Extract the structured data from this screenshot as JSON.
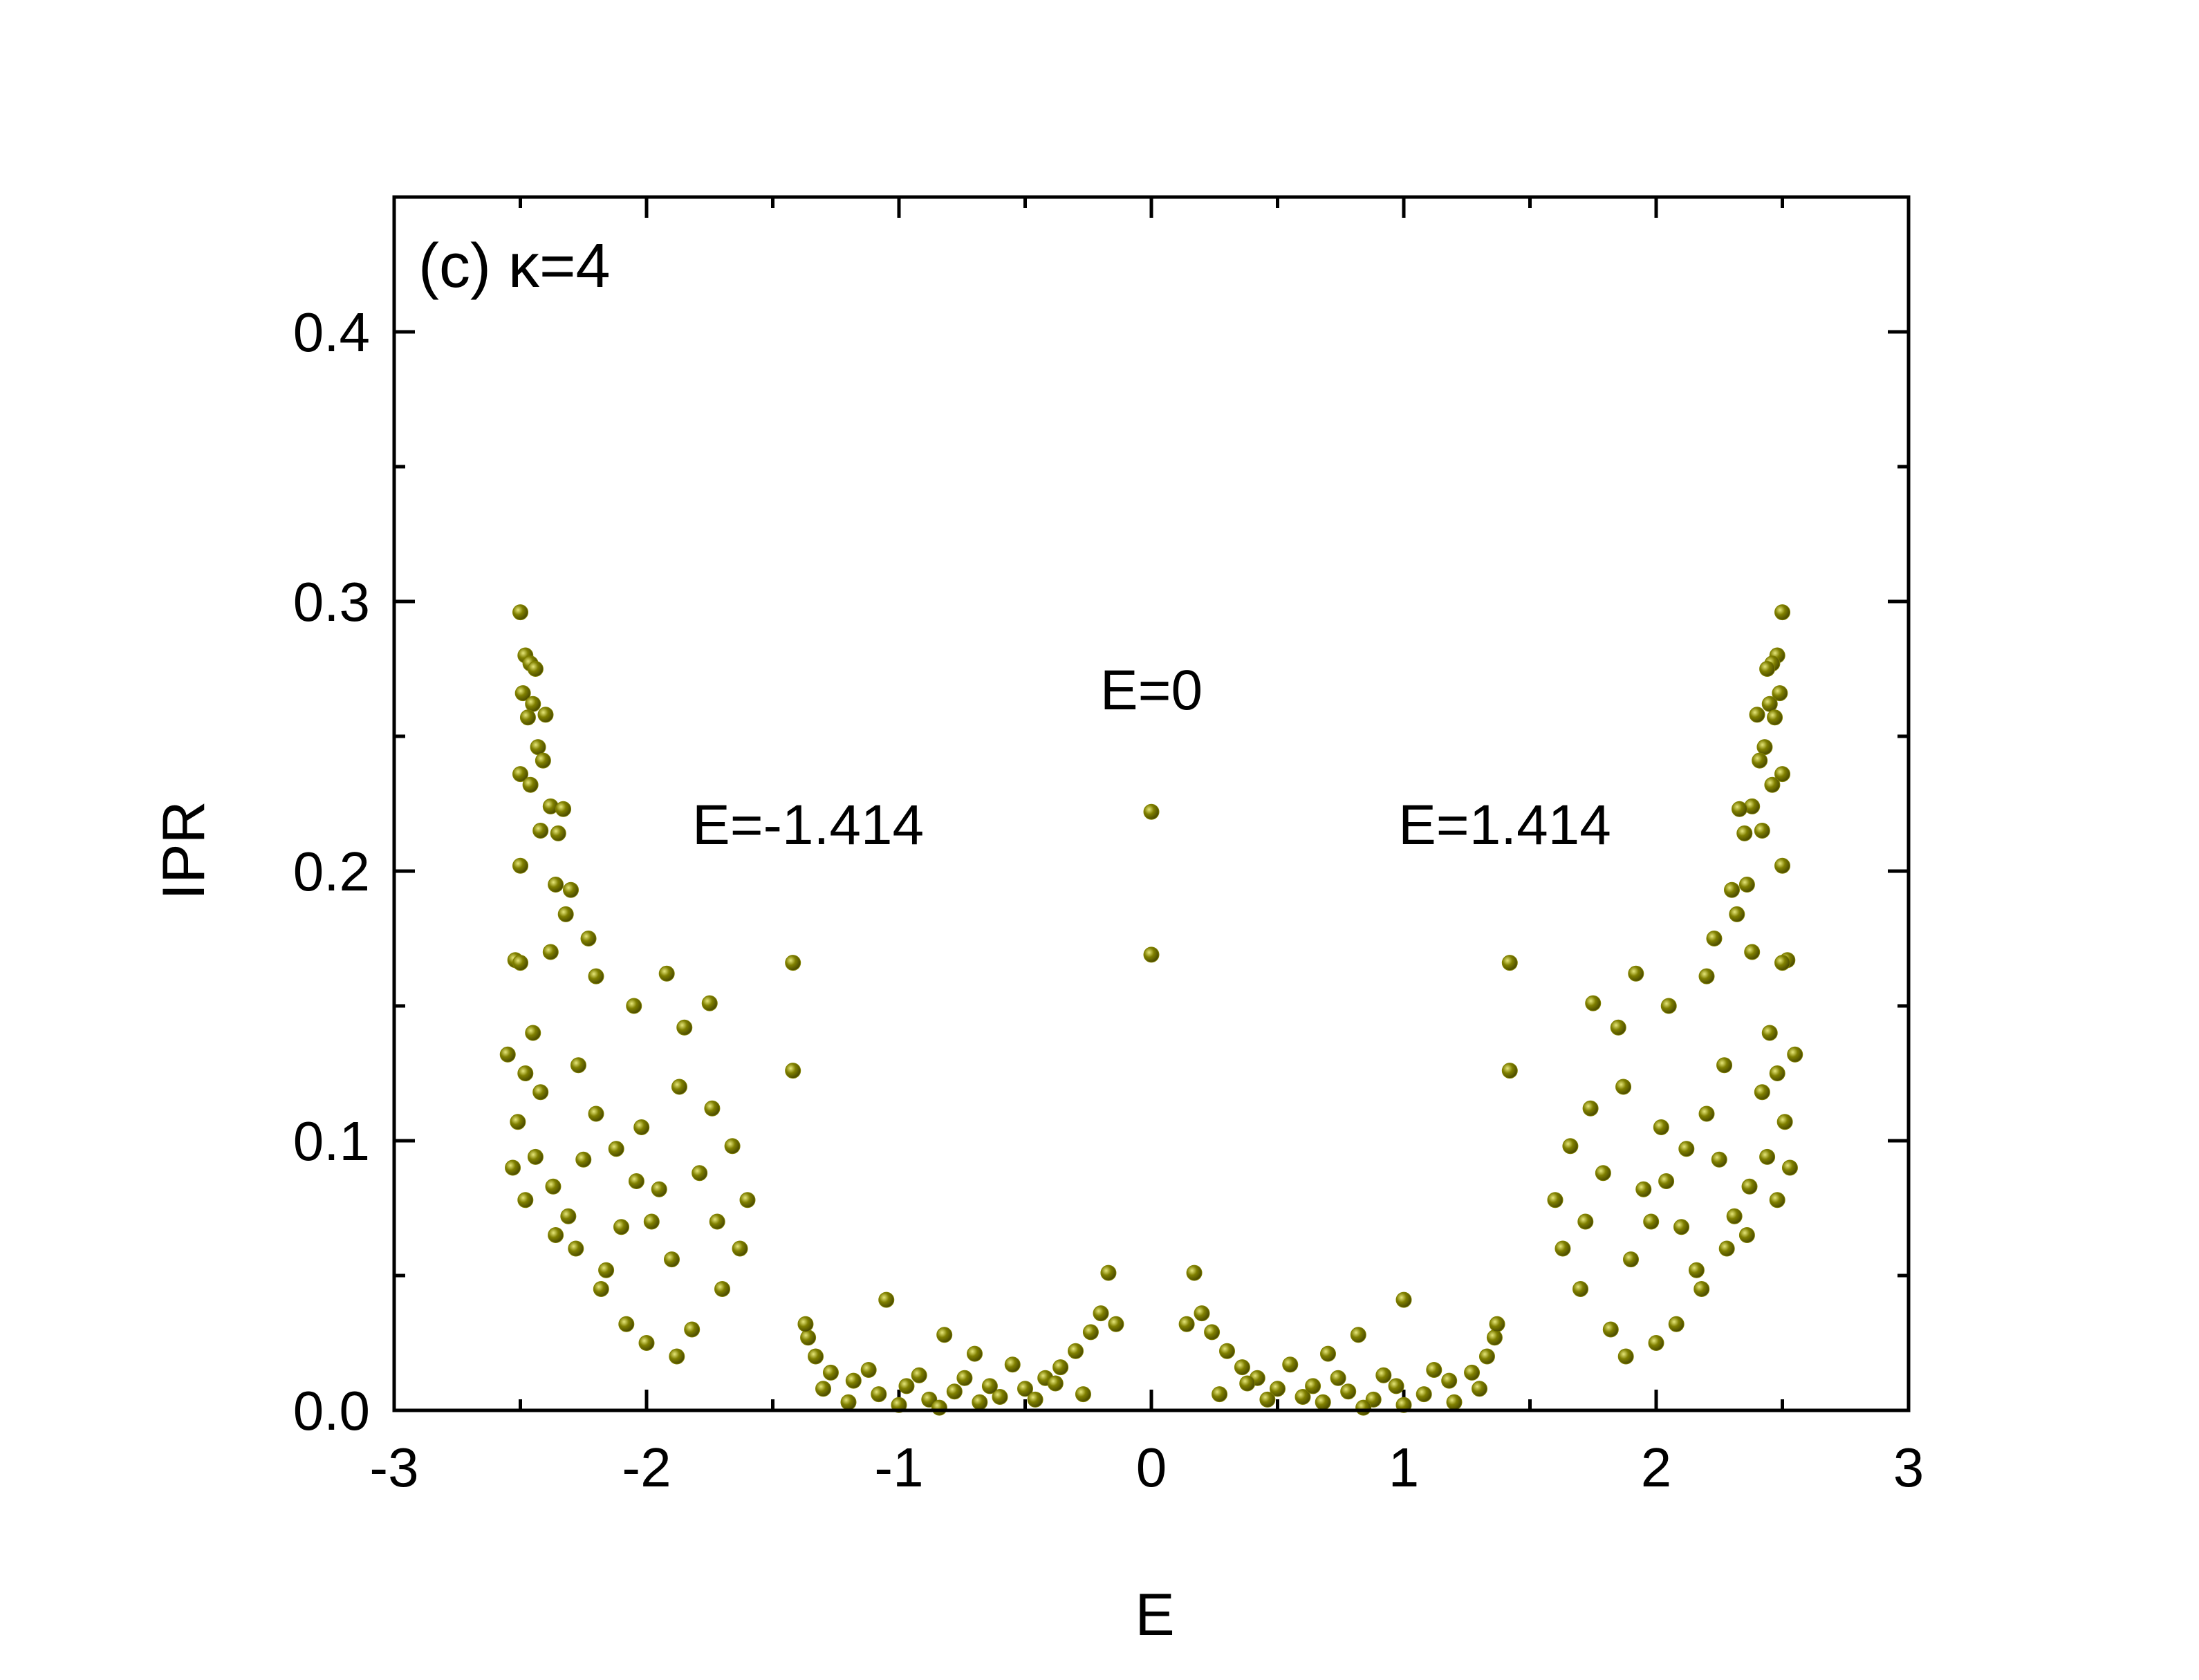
{
  "chart_data": {
    "type": "scatter",
    "title": "",
    "panel_label": "(c) κ=4",
    "xlabel": "E",
    "ylabel": "IPR",
    "xlim": [
      -3,
      3
    ],
    "ylim": [
      0,
      0.45
    ],
    "xticks": [
      "-3",
      "-2",
      "-1",
      "0",
      "1",
      "2",
      "3"
    ],
    "yticks": [
      "0.0",
      "0.1",
      "0.2",
      "0.3",
      "0.4"
    ],
    "grid": false,
    "marker_color": "#808000",
    "annotations": [
      {
        "text": "E=0",
        "x": 0,
        "y": 0.26
      },
      {
        "text": "E=-1.414",
        "x": -1.36,
        "y": 0.21
      },
      {
        "text": "E=1.414",
        "x": 1.4,
        "y": 0.21
      }
    ],
    "series": [
      {
        "points": [
          [
            -2.5,
            0.296
          ],
          [
            -2.48,
            0.28
          ],
          [
            -2.46,
            0.277
          ],
          [
            -2.44,
            0.275
          ],
          [
            -2.49,
            0.266
          ],
          [
            -2.45,
            0.262
          ],
          [
            -2.47,
            0.257
          ],
          [
            -2.4,
            0.258
          ],
          [
            -2.43,
            0.246
          ],
          [
            -2.41,
            0.241
          ],
          [
            -2.5,
            0.236
          ],
          [
            -2.46,
            0.232
          ],
          [
            -2.38,
            0.224
          ],
          [
            -2.33,
            0.223
          ],
          [
            -2.35,
            0.214
          ],
          [
            -2.42,
            0.215
          ],
          [
            -2.5,
            0.202
          ],
          [
            -2.36,
            0.195
          ],
          [
            -2.3,
            0.193
          ],
          [
            -2.32,
            0.184
          ],
          [
            -2.38,
            0.17
          ],
          [
            -2.23,
            0.175
          ],
          [
            -2.52,
            0.167
          ],
          [
            -2.5,
            0.166
          ],
          [
            -2.2,
            0.161
          ],
          [
            -1.92,
            0.162
          ],
          [
            -1.75,
            0.151
          ],
          [
            -2.55,
            0.132
          ],
          [
            -2.48,
            0.125
          ],
          [
            -2.45,
            0.14
          ],
          [
            -2.42,
            0.118
          ],
          [
            -2.51,
            0.107
          ],
          [
            -2.53,
            0.09
          ],
          [
            -2.44,
            0.094
          ],
          [
            -2.37,
            0.083
          ],
          [
            -2.31,
            0.072
          ],
          [
            -2.48,
            0.078
          ],
          [
            -2.36,
            0.065
          ],
          [
            -2.16,
            0.052
          ],
          [
            -2.08,
            0.032
          ],
          [
            -2.0,
            0.025
          ],
          [
            -1.88,
            0.02
          ],
          [
            -1.82,
            0.03
          ],
          [
            -1.7,
            0.045
          ],
          [
            -1.63,
            0.06
          ],
          [
            -1.6,
            0.078
          ],
          [
            -1.66,
            0.098
          ],
          [
            -1.74,
            0.112
          ],
          [
            -1.85,
            0.142
          ],
          [
            -2.05,
            0.15
          ],
          [
            -2.27,
            0.128
          ],
          [
            -2.2,
            0.11
          ],
          [
            -2.12,
            0.097
          ],
          [
            -2.04,
            0.085
          ],
          [
            -1.98,
            0.07
          ],
          [
            -1.9,
            0.056
          ],
          [
            -1.95,
            0.082
          ],
          [
            -2.1,
            0.068
          ],
          [
            -2.25,
            0.093
          ],
          [
            -1.79,
            0.088
          ],
          [
            -1.72,
            0.07
          ],
          [
            -2.18,
            0.045
          ],
          [
            -2.28,
            0.06
          ],
          [
            -2.02,
            0.105
          ],
          [
            -1.87,
            0.12
          ],
          [
            -1.42,
            0.166
          ],
          [
            -1.42,
            0.126
          ],
          [
            -1.05,
            0.041
          ],
          [
            -0.82,
            0.028
          ],
          [
            -0.7,
            0.021
          ],
          [
            -0.17,
            0.051
          ],
          [
            -0.2,
            0.036
          ],
          [
            -0.14,
            0.032
          ],
          [
            -0.24,
            0.029
          ],
          [
            -0.3,
            0.022
          ],
          [
            -0.36,
            0.016
          ],
          [
            -0.42,
            0.012
          ],
          [
            -0.5,
            0.008
          ],
          [
            -0.6,
            0.005
          ],
          [
            -0.68,
            0.003
          ],
          [
            -0.78,
            0.007
          ],
          [
            -0.88,
            0.004
          ],
          [
            -0.97,
            0.009
          ],
          [
            -1.08,
            0.006
          ],
          [
            -1.18,
            0.011
          ],
          [
            -1.27,
            0.014
          ],
          [
            -1.33,
            0.02
          ],
          [
            -1.36,
            0.027
          ],
          [
            -1.37,
            0.032
          ],
          [
            -1.3,
            0.008
          ],
          [
            -1.2,
            0.003
          ],
          [
            -1.12,
            0.015
          ],
          [
            -1.0,
            0.002
          ],
          [
            -0.92,
            0.013
          ],
          [
            -0.84,
            0.001
          ],
          [
            -0.74,
            0.012
          ],
          [
            -0.64,
            0.009
          ],
          [
            -0.55,
            0.017
          ],
          [
            -0.46,
            0.004
          ],
          [
            -0.38,
            0.01
          ],
          [
            -0.27,
            0.006
          ],
          [
            0.0,
            0.222
          ],
          [
            0.0,
            0.169
          ],
          [
            0.17,
            0.051
          ],
          [
            0.2,
            0.036
          ],
          [
            0.14,
            0.032
          ],
          [
            0.24,
            0.029
          ],
          [
            0.3,
            0.022
          ],
          [
            0.36,
            0.016
          ],
          [
            0.42,
            0.012
          ],
          [
            0.5,
            0.008
          ],
          [
            0.6,
            0.005
          ],
          [
            0.68,
            0.003
          ],
          [
            0.78,
            0.007
          ],
          [
            0.88,
            0.004
          ],
          [
            0.97,
            0.009
          ],
          [
            1.08,
            0.006
          ],
          [
            1.18,
            0.011
          ],
          [
            1.27,
            0.014
          ],
          [
            1.33,
            0.02
          ],
          [
            1.36,
            0.027
          ],
          [
            1.37,
            0.032
          ],
          [
            1.3,
            0.008
          ],
          [
            1.2,
            0.003
          ],
          [
            1.12,
            0.015
          ],
          [
            1.0,
            0.002
          ],
          [
            0.92,
            0.013
          ],
          [
            0.84,
            0.001
          ],
          [
            0.74,
            0.012
          ],
          [
            0.64,
            0.009
          ],
          [
            0.55,
            0.017
          ],
          [
            0.46,
            0.004
          ],
          [
            0.38,
            0.01
          ],
          [
            0.27,
            0.006
          ],
          [
            0.82,
            0.028
          ],
          [
            1.0,
            0.041
          ],
          [
            0.7,
            0.021
          ],
          [
            1.42,
            0.166
          ],
          [
            1.42,
            0.126
          ],
          [
            2.5,
            0.296
          ],
          [
            2.48,
            0.28
          ],
          [
            2.46,
            0.277
          ],
          [
            2.44,
            0.275
          ],
          [
            2.49,
            0.266
          ],
          [
            2.45,
            0.262
          ],
          [
            2.47,
            0.257
          ],
          [
            2.4,
            0.258
          ],
          [
            2.43,
            0.246
          ],
          [
            2.41,
            0.241
          ],
          [
            2.5,
            0.236
          ],
          [
            2.46,
            0.232
          ],
          [
            2.38,
            0.224
          ],
          [
            2.33,
            0.223
          ],
          [
            2.35,
            0.214
          ],
          [
            2.42,
            0.215
          ],
          [
            2.5,
            0.202
          ],
          [
            2.36,
            0.195
          ],
          [
            2.3,
            0.193
          ],
          [
            2.32,
            0.184
          ],
          [
            2.38,
            0.17
          ],
          [
            2.23,
            0.175
          ],
          [
            2.52,
            0.167
          ],
          [
            2.5,
            0.166
          ],
          [
            2.2,
            0.161
          ],
          [
            1.92,
            0.162
          ],
          [
            1.75,
            0.151
          ],
          [
            2.55,
            0.132
          ],
          [
            2.48,
            0.125
          ],
          [
            2.45,
            0.14
          ],
          [
            2.42,
            0.118
          ],
          [
            2.51,
            0.107
          ],
          [
            2.53,
            0.09
          ],
          [
            2.44,
            0.094
          ],
          [
            2.37,
            0.083
          ],
          [
            2.31,
            0.072
          ],
          [
            2.48,
            0.078
          ],
          [
            2.36,
            0.065
          ],
          [
            2.16,
            0.052
          ],
          [
            2.08,
            0.032
          ],
          [
            2.0,
            0.025
          ],
          [
            1.88,
            0.02
          ],
          [
            1.82,
            0.03
          ],
          [
            1.7,
            0.045
          ],
          [
            1.63,
            0.06
          ],
          [
            1.6,
            0.078
          ],
          [
            1.66,
            0.098
          ],
          [
            1.74,
            0.112
          ],
          [
            1.85,
            0.142
          ],
          [
            2.05,
            0.15
          ],
          [
            2.27,
            0.128
          ],
          [
            2.2,
            0.11
          ],
          [
            2.12,
            0.097
          ],
          [
            2.04,
            0.085
          ],
          [
            1.98,
            0.07
          ],
          [
            1.9,
            0.056
          ],
          [
            1.95,
            0.082
          ],
          [
            2.1,
            0.068
          ],
          [
            2.25,
            0.093
          ],
          [
            1.79,
            0.088
          ],
          [
            1.72,
            0.07
          ],
          [
            2.18,
            0.045
          ],
          [
            2.28,
            0.06
          ],
          [
            2.02,
            0.105
          ],
          [
            1.87,
            0.12
          ]
        ]
      }
    ]
  }
}
